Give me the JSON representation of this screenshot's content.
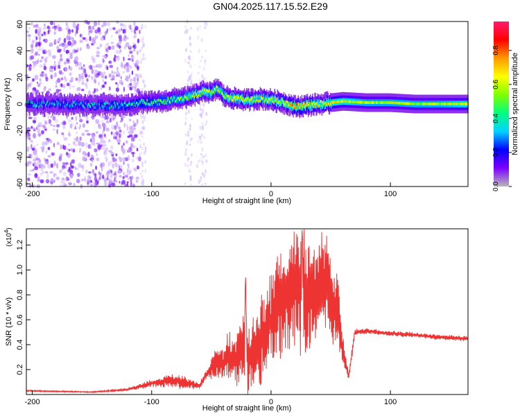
{
  "title": "GN04.2025.117.15.52.E29",
  "chart_data": [
    {
      "type": "heatmap",
      "xlabel": "Height of straight line (km)",
      "ylabel": "Frequency (Hz)",
      "xlim": [
        -205,
        165
      ],
      "ylim": [
        -62,
        62
      ],
      "xticks": [
        -200,
        -100,
        0,
        100
      ],
      "yticks": [
        -60,
        -40,
        -20,
        0,
        20,
        40,
        60
      ],
      "colorbar": {
        "label": "Normalized spectral amplitude",
        "range": [
          0,
          0.97
        ],
        "ticks": [
          "0.0",
          "0.2",
          "0.4",
          "0.6",
          "0.8"
        ],
        "tick_values": [
          0,
          0.2,
          0.4,
          0.6,
          0.8
        ],
        "colormap": [
          "#b9b9b9",
          "#7d00ff",
          "#0000ff",
          "#00d2ff",
          "#00ff7f",
          "#7fff00",
          "#ffff00",
          "#ff9900",
          "#ff0000",
          "#ff1a6e"
        ]
      },
      "ridge": {
        "x": [
          -205,
          -180,
          -150,
          -120,
          -110,
          -90,
          -80,
          -70,
          -60,
          -55,
          -50,
          -45,
          -40,
          -35,
          -30,
          -20,
          -10,
          0,
          10,
          20,
          30,
          40,
          50,
          60,
          80,
          100,
          120,
          140,
          165
        ],
        "y": [
          0,
          0,
          -1,
          -1,
          1,
          2,
          4,
          5,
          8,
          10,
          8,
          12,
          6,
          5,
          4,
          3,
          4,
          3,
          1,
          -2,
          -1,
          0,
          1,
          2,
          1,
          1,
          0,
          0,
          0
        ],
        "amplitude": [
          0.3,
          0.3,
          0.3,
          0.35,
          0.4,
          0.45,
          0.5,
          0.55,
          0.55,
          0.6,
          0.55,
          0.55,
          0.55,
          0.6,
          0.6,
          0.6,
          0.55,
          0.6,
          0.6,
          0.75,
          0.7,
          0.6,
          0.65,
          0.6,
          0.55,
          0.55,
          0.55,
          0.55,
          0.6
        ]
      }
    },
    {
      "type": "line",
      "xlabel": "Height of straight line (km)",
      "ylabel": "SNR (10 * v/v)",
      "y_multiplier": "(x10",
      "y_multiplier_exponent": "4",
      "xlim": [
        -205,
        165
      ],
      "ylim": [
        0,
        13300
      ],
      "xticks": [
        -200,
        -100,
        0,
        100
      ],
      "yticks": [
        2000,
        4000,
        6000,
        8000,
        10000,
        12000
      ],
      "ytick_labels": [
        "0.2",
        "0.4",
        "0.6",
        "0.8",
        "1.0",
        "1.2"
      ],
      "color": "#ee3333",
      "x": [
        -205,
        -180,
        -150,
        -120,
        -100,
        -85,
        -75,
        -60,
        -55,
        -50,
        -45,
        -40,
        -36,
        -30,
        -22,
        -21.5,
        -20,
        -10,
        0,
        10,
        15,
        20,
        25,
        26,
        27,
        30,
        40,
        47,
        50,
        55,
        60,
        65,
        68,
        70,
        80,
        100,
        120,
        140,
        165
      ],
      "y": [
        300,
        250,
        200,
        400,
        900,
        1100,
        1000,
        700,
        1500,
        2200,
        2600,
        2400,
        3100,
        2800,
        3600,
        10600,
        2500,
        4000,
        6000,
        7500,
        8500,
        8500,
        8000,
        13200,
        9000,
        7500,
        8500,
        9900,
        7000,
        7300,
        3500,
        1500,
        3500,
        5000,
        5100,
        4900,
        4800,
        4600,
        4500
      ],
      "amplitude": [
        50,
        50,
        50,
        80,
        300,
        500,
        500,
        250,
        400,
        900,
        1200,
        1300,
        1800,
        2000,
        2600,
        0,
        2600,
        3200,
        3800,
        4200,
        4600,
        4800,
        5000,
        0,
        4800,
        4400,
        4000,
        3600,
        3200,
        2800,
        1200,
        300,
        500,
        250,
        200,
        200,
        200,
        200,
        200
      ]
    }
  ]
}
